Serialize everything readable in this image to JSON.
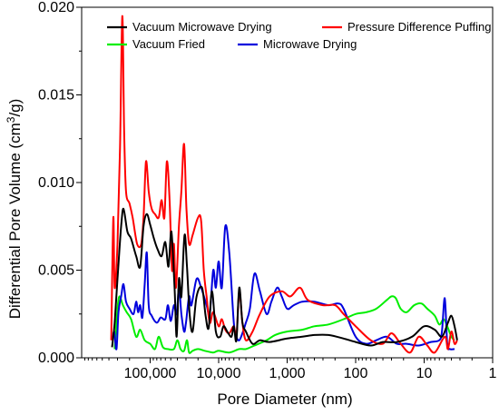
{
  "chart_data": {
    "type": "line",
    "title": "",
    "xlabel": "Pore Diameter (nm)",
    "ylabel_main": "Differential Pore Volume (cm",
    "ylabel_sup": "3",
    "ylabel_end": "/g)",
    "x_scale": "log",
    "x_reversed": true,
    "xlim": [
      1000000,
      1
    ],
    "ylim": [
      0,
      0.02
    ],
    "grid": false,
    "legend_position": "top",
    "x_ticks": [
      {
        "value": 100000,
        "label": "100,000"
      },
      {
        "value": 10000,
        "label": "10,000"
      },
      {
        "value": 1000,
        "label": "1,000"
      },
      {
        "value": 100,
        "label": "100"
      },
      {
        "value": 10,
        "label": "10"
      },
      {
        "value": 1,
        "label": "1"
      }
    ],
    "y_ticks": [
      {
        "value": 0,
        "label": "0.000"
      },
      {
        "value": 0.005,
        "label": "0.005"
      },
      {
        "value": 0.01,
        "label": "0.010"
      },
      {
        "value": 0.015,
        "label": "0.015"
      },
      {
        "value": 0.02,
        "label": "0.020"
      }
    ],
    "series": [
      {
        "name": "Vacuum Microwave Drying",
        "color": "#000000",
        "points": [
          [
            360000,
            0.0006
          ],
          [
            330000,
            0.002
          ],
          [
            300000,
            0.0045
          ],
          [
            265000,
            0.0075
          ],
          [
            245000,
            0.0085
          ],
          [
            215000,
            0.0072
          ],
          [
            190000,
            0.0068
          ],
          [
            160000,
            0.0058
          ],
          [
            140000,
            0.0052
          ],
          [
            125000,
            0.0075
          ],
          [
            112000,
            0.0082
          ],
          [
            100000,
            0.0076
          ],
          [
            88000,
            0.0068
          ],
          [
            78000,
            0.0062
          ],
          [
            68000,
            0.0058
          ],
          [
            60000,
            0.0066
          ],
          [
            54000,
            0.0052
          ],
          [
            49000,
            0.0072
          ],
          [
            44000,
            0.004
          ],
          [
            41000,
            0.0012
          ],
          [
            38000,
            0.0045
          ],
          [
            35000,
            0.0035
          ],
          [
            31500,
            0.007
          ],
          [
            29000,
            0.0052
          ],
          [
            26500,
            0.0025
          ],
          [
            24000,
            0.0015
          ],
          [
            21000,
            0.0035
          ],
          [
            17500,
            0.004
          ],
          [
            15500,
            0.0024
          ],
          [
            14000,
            0.0017
          ],
          [
            12500,
            0.0038
          ],
          [
            11000,
            0.0015
          ],
          [
            9500,
            0.0012
          ],
          [
            8500,
            0.0018
          ],
          [
            7500,
            0.0015
          ],
          [
            6500,
            0.0012
          ],
          [
            6000,
            0.0018
          ],
          [
            5500,
            0.001
          ],
          [
            5000,
            0.004
          ],
          [
            4500,
            0.002
          ],
          [
            4000,
            0.0015
          ],
          [
            3200,
            0.0008
          ],
          [
            2500,
            0.001
          ],
          [
            1800,
            0.0009
          ],
          [
            1000,
            0.0011
          ],
          [
            600,
            0.0012
          ],
          [
            400,
            0.0013
          ],
          [
            250,
            0.0013
          ],
          [
            150,
            0.0011
          ],
          [
            100,
            0.0009
          ],
          [
            60,
            0.0007
          ],
          [
            40,
            0.0009
          ],
          [
            25,
            0.0009
          ],
          [
            15,
            0.0012
          ],
          [
            10,
            0.0018
          ],
          [
            7,
            0.0016
          ],
          [
            5.5,
            0.0012
          ],
          [
            4.5,
            0.002
          ],
          [
            4,
            0.0024
          ],
          [
            3.6,
            0.0018
          ],
          [
            3.3,
            0.001
          ]
        ]
      },
      {
        "name": "Pressure Difference Puffing",
        "color": "#ff0000",
        "points": [
          [
            370000,
            0.001
          ],
          [
            345000,
            0.008
          ],
          [
            330000,
            0.004
          ],
          [
            300000,
            0.0065
          ],
          [
            275000,
            0.012
          ],
          [
            255000,
            0.0195
          ],
          [
            240000,
            0.013
          ],
          [
            225000,
            0.0095
          ],
          [
            200000,
            0.0088
          ],
          [
            180000,
            0.008
          ],
          [
            155000,
            0.0065
          ],
          [
            135000,
            0.0065
          ],
          [
            125000,
            0.008
          ],
          [
            115000,
            0.0112
          ],
          [
            105000,
            0.0095
          ],
          [
            95000,
            0.0085
          ],
          [
            85000,
            0.0082
          ],
          [
            75000,
            0.008
          ],
          [
            68000,
            0.009
          ],
          [
            62000,
            0.008
          ],
          [
            57000,
            0.0112
          ],
          [
            52000,
            0.009
          ],
          [
            48000,
            0.005
          ],
          [
            45000,
            0.0065
          ],
          [
            42000,
            0.004
          ],
          [
            38000,
            0.0075
          ],
          [
            35000,
            0.0095
          ],
          [
            32000,
            0.0122
          ],
          [
            29500,
            0.0085
          ],
          [
            27000,
            0.0065
          ],
          [
            24000,
            0.007
          ],
          [
            20000,
            0.008
          ],
          [
            18000,
            0.0078
          ],
          [
            16500,
            0.005
          ],
          [
            15000,
            0.0035
          ],
          [
            13500,
            0.002
          ],
          [
            12000,
            0.0026
          ],
          [
            10000,
            0.0018
          ],
          [
            9000,
            0.0022
          ],
          [
            8000,
            0.0016
          ],
          [
            7000,
            0.0014
          ],
          [
            6000,
            0.0018
          ],
          [
            5500,
            0.0012
          ],
          [
            5000,
            0.0038
          ],
          [
            4500,
            0.002
          ],
          [
            4000,
            0.001
          ],
          [
            3200,
            0.0015
          ],
          [
            2500,
            0.0025
          ],
          [
            1800,
            0.0035
          ],
          [
            1200,
            0.0038
          ],
          [
            900,
            0.0035
          ],
          [
            650,
            0.004
          ],
          [
            500,
            0.0033
          ],
          [
            300,
            0.003
          ],
          [
            200,
            0.003
          ],
          [
            150,
            0.0025
          ],
          [
            100,
            0.0018
          ],
          [
            60,
            0.001
          ],
          [
            40,
            0.0008
          ],
          [
            30,
            0.0014
          ],
          [
            22,
            0.0008
          ],
          [
            16,
            0.0003
          ],
          [
            12,
            0.0012
          ],
          [
            9,
            0.0007
          ],
          [
            7,
            0.0003
          ],
          [
            5,
            0.0012
          ],
          [
            4.5,
            0.0005
          ],
          [
            4,
            0.0015
          ],
          [
            3.6,
            0.0008
          ],
          [
            3.3,
            0.001
          ]
        ]
      },
      {
        "name": "Vacuum Fried",
        "color": "#00ee00",
        "points": [
          [
            330000,
            0.0005
          ],
          [
            300000,
            0.0028
          ],
          [
            280000,
            0.0035
          ],
          [
            250000,
            0.003
          ],
          [
            220000,
            0.0026
          ],
          [
            190000,
            0.0022
          ],
          [
            160000,
            0.0012
          ],
          [
            140000,
            0.0016
          ],
          [
            120000,
            0.001
          ],
          [
            100000,
            0.0008
          ],
          [
            85000,
            0.0005
          ],
          [
            75000,
            0.0012
          ],
          [
            65000,
            0.0006
          ],
          [
            55000,
            0.0005
          ],
          [
            45000,
            0.0005
          ],
          [
            40000,
            0.001
          ],
          [
            36000,
            0.0005
          ],
          [
            32000,
            0.0004
          ],
          [
            29000,
            0.001
          ],
          [
            27000,
            0.0003
          ],
          [
            24000,
            0.0004
          ],
          [
            20000,
            0.0005
          ],
          [
            16000,
            0.0004
          ],
          [
            12000,
            0.0003
          ],
          [
            10000,
            0.0004
          ],
          [
            7000,
            0.0003
          ],
          [
            5000,
            0.0005
          ],
          [
            4000,
            0.0005
          ],
          [
            3000,
            0.0007
          ],
          [
            2000,
            0.001
          ],
          [
            1500,
            0.0013
          ],
          [
            1000,
            0.0015
          ],
          [
            600,
            0.0016
          ],
          [
            400,
            0.0018
          ],
          [
            250,
            0.0019
          ],
          [
            150,
            0.0022
          ],
          [
            100,
            0.0025
          ],
          [
            70,
            0.0026
          ],
          [
            50,
            0.0028
          ],
          [
            35,
            0.0033
          ],
          [
            30,
            0.0035
          ],
          [
            26,
            0.0034
          ],
          [
            22,
            0.0028
          ],
          [
            18,
            0.0026
          ],
          [
            14,
            0.003
          ],
          [
            11,
            0.0031
          ],
          [
            9,
            0.0028
          ],
          [
            7,
            0.0024
          ],
          [
            6,
            0.0019
          ],
          [
            5.2,
            0.0022
          ],
          [
            4.6,
            0.0018
          ],
          [
            4,
            0.0012
          ],
          [
            3.6,
            0.001
          ]
        ]
      },
      {
        "name": "Microwave Drying",
        "color": "#0000dd",
        "points": [
          [
            355000,
            0.001
          ],
          [
            335000,
            0.0015
          ],
          [
            310000,
            0.0005
          ],
          [
            290000,
            0.0026
          ],
          [
            265000,
            0.0035
          ],
          [
            245000,
            0.0042
          ],
          [
            225000,
            0.0032
          ],
          [
            200000,
            0.0028
          ],
          [
            175000,
            0.0025
          ],
          [
            160000,
            0.0032
          ],
          [
            150000,
            0.0026
          ],
          [
            140000,
            0.003
          ],
          [
            130000,
            0.0023
          ],
          [
            120000,
            0.0042
          ],
          [
            112000,
            0.006
          ],
          [
            105000,
            0.003
          ],
          [
            95000,
            0.0024
          ],
          [
            80000,
            0.002
          ],
          [
            70000,
            0.0023
          ],
          [
            60000,
            0.0022
          ],
          [
            55000,
            0.003
          ],
          [
            50000,
            0.0021
          ],
          [
            45000,
            0.003
          ],
          [
            41000,
            0.0025
          ],
          [
            38000,
            0.004
          ],
          [
            35000,
            0.0025
          ],
          [
            32000,
            0.0015
          ],
          [
            30000,
            0.002
          ],
          [
            27000,
            0.0035
          ],
          [
            25000,
            0.003
          ],
          [
            21000,
            0.0045
          ],
          [
            18000,
            0.004
          ],
          [
            15000,
            0.003
          ],
          [
            13500,
            0.0025
          ],
          [
            12000,
            0.005
          ],
          [
            11000,
            0.004
          ],
          [
            10000,
            0.0055
          ],
          [
            9000,
            0.004
          ],
          [
            8000,
            0.0075
          ],
          [
            7000,
            0.006
          ],
          [
            6000,
            0.002
          ],
          [
            5500,
            0.0012
          ],
          [
            5000,
            0.001
          ],
          [
            4500,
            0.0014
          ],
          [
            4000,
            0.002
          ],
          [
            3500,
            0.0028
          ],
          [
            3000,
            0.0048
          ],
          [
            2500,
            0.0038
          ],
          [
            2000,
            0.0025
          ],
          [
            1700,
            0.0032
          ],
          [
            1400,
            0.004
          ],
          [
            1200,
            0.0035
          ],
          [
            1000,
            0.0028
          ],
          [
            800,
            0.003
          ],
          [
            600,
            0.0032
          ],
          [
            400,
            0.0032
          ],
          [
            250,
            0.003
          ],
          [
            180,
            0.0031
          ],
          [
            150,
            0.0028
          ],
          [
            100,
            0.0012
          ],
          [
            70,
            0.0008
          ],
          [
            50,
            0.001
          ],
          [
            35,
            0.0012
          ],
          [
            25,
            0.0008
          ],
          [
            18,
            0.0008
          ],
          [
            12,
            0.0007
          ],
          [
            8,
            0.0009
          ],
          [
            6,
            0.001
          ],
          [
            5.5,
            0.0015
          ],
          [
            5,
            0.0034
          ],
          [
            4.6,
            0.0008
          ],
          [
            4.2,
            0.0005
          ],
          [
            3.6,
            0.0005
          ]
        ]
      }
    ]
  }
}
